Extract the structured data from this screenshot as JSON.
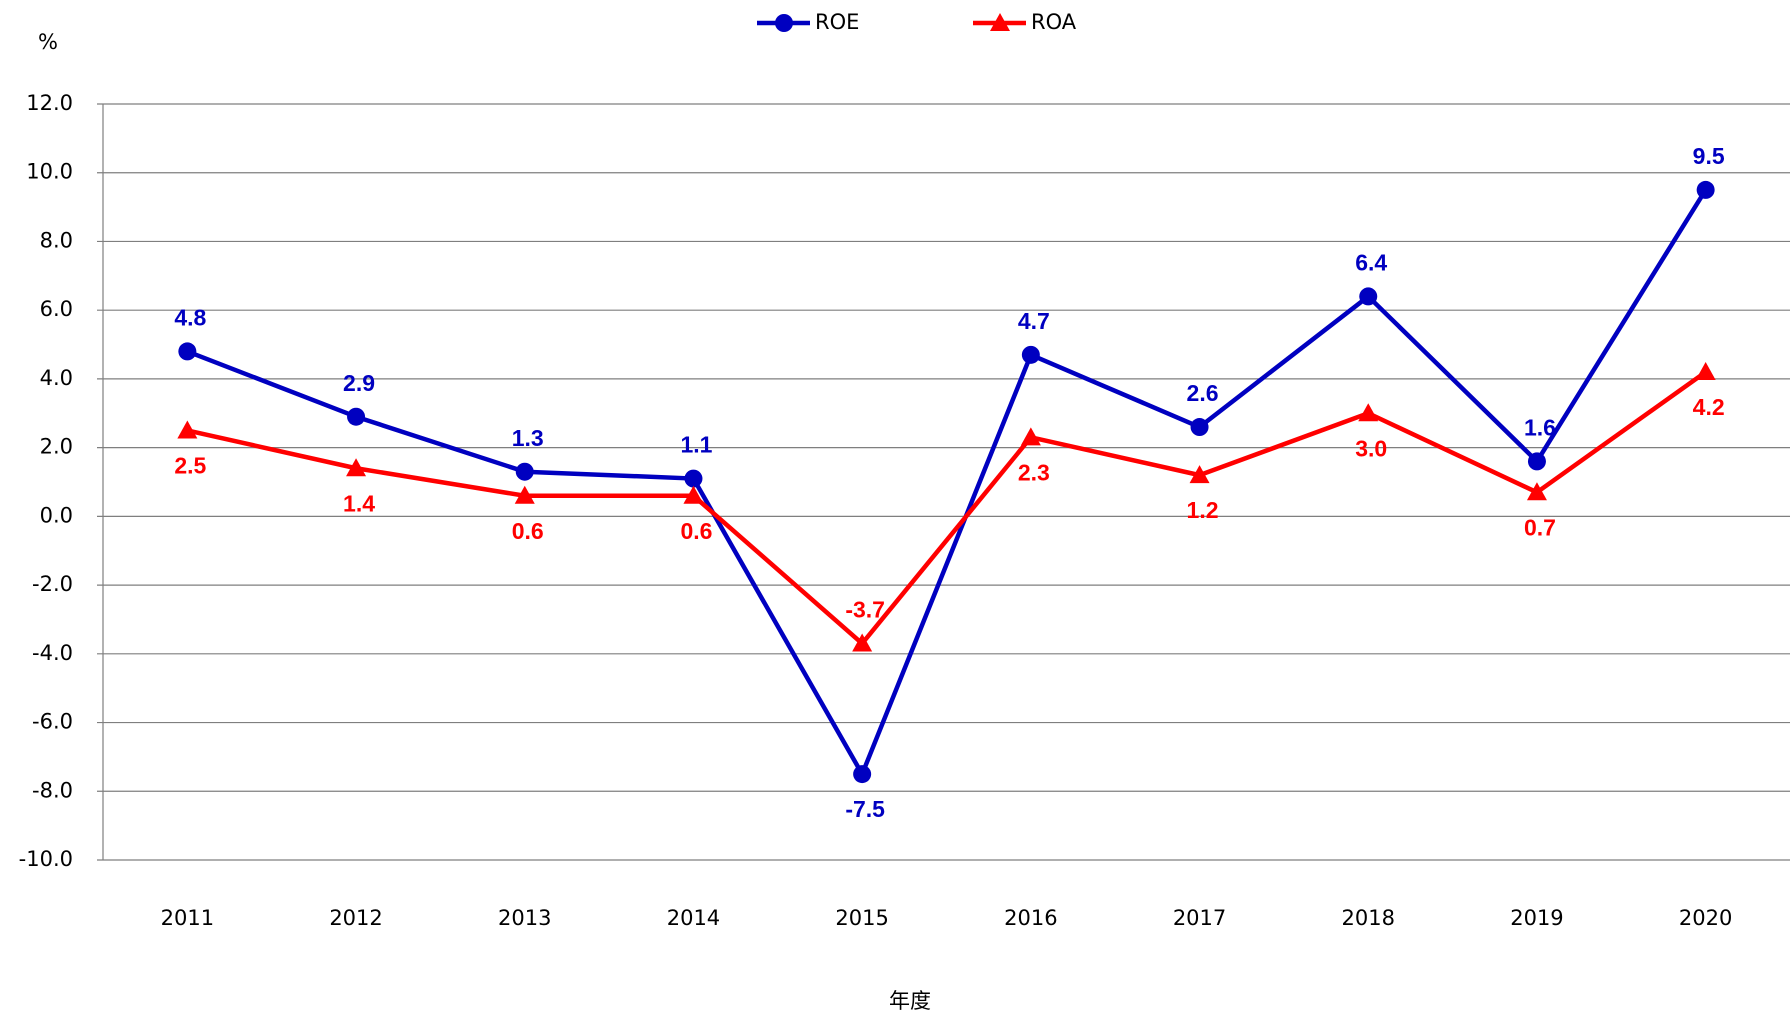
{
  "chart_data": {
    "type": "line",
    "categories": [
      "2011",
      "2012",
      "2013",
      "2014",
      "2015",
      "2016",
      "2017",
      "2018",
      "2019",
      "2020"
    ],
    "series": [
      {
        "name": "ROE",
        "color": "#0000c0",
        "marker": "circle",
        "values": [
          4.8,
          2.9,
          1.3,
          1.1,
          -7.5,
          4.7,
          2.6,
          6.4,
          1.6,
          9.5
        ],
        "value_labels": [
          "4.8",
          "2.9",
          "1.3",
          "1.1",
          "-7.5",
          "4.7",
          "2.6",
          "6.4",
          "1.6",
          "9.5"
        ]
      },
      {
        "name": "ROA",
        "color": "#ff0000",
        "marker": "triangle",
        "values": [
          2.5,
          1.4,
          0.6,
          0.6,
          -3.7,
          2.3,
          1.2,
          3.0,
          0.7,
          4.2
        ],
        "value_labels": [
          "2.5",
          "1.4",
          "0.6",
          "0.6",
          "-3.7",
          "2.3",
          "1.2",
          "3.0",
          "0.7",
          "4.2"
        ]
      }
    ],
    "y_label": "%",
    "x_label": "年度",
    "ylim": [
      -10,
      12
    ],
    "yticks": [
      {
        "value": -10,
        "label": "-10.0"
      },
      {
        "value": -8,
        "label": "-8.0"
      },
      {
        "value": -6,
        "label": "-6.0"
      },
      {
        "value": -4,
        "label": "-4.0"
      },
      {
        "value": -2,
        "label": "-2.0"
      },
      {
        "value": 0,
        "label": "0.0"
      },
      {
        "value": 2,
        "label": "2.0"
      },
      {
        "value": 4,
        "label": "4.0"
      },
      {
        "value": 6,
        "label": "6.0"
      },
      {
        "value": 8,
        "label": "8.0"
      },
      {
        "value": 10,
        "label": "10.0"
      },
      {
        "value": 12,
        "label": "12.0"
      }
    ],
    "grid": true,
    "legend": "top"
  }
}
